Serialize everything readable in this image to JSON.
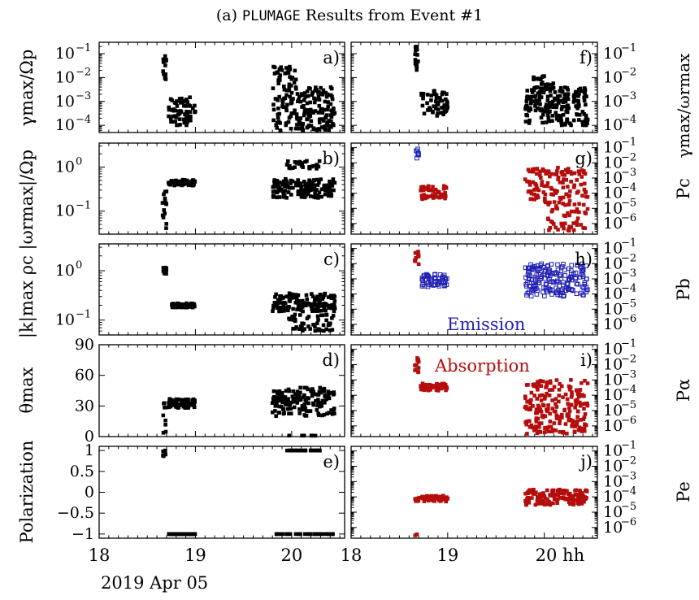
{
  "title": {
    "prefix": "(a)",
    "code": "PLUMAGE",
    "suffix": "Results from Event #1"
  },
  "colors": {
    "marker": "#000000",
    "absorption": "#b50c0c",
    "emission": "#1f1fb4"
  },
  "xaxis": {
    "ticks_left": [
      "18",
      "19",
      "20"
    ],
    "ticks_right": [
      "18",
      "19",
      "20 hh"
    ],
    "date": "2019 Apr 05",
    "xlim": [
      18,
      20.55
    ]
  },
  "legend": {
    "emission": "Emission",
    "absorption": "Absorption"
  },
  "left_ylabels": {
    "a": "γmax/Ωp",
    "bc": "|k|max ρc  |ωrmax|/Ωp",
    "d": "θmax",
    "e": "Polarization"
  },
  "right_ylabels": {
    "f": "γmax/ωrmax",
    "g": "Pc",
    "h": "Pb",
    "i": "Pα",
    "j": "Pe"
  },
  "chart_data": [
    {
      "panel": "a)",
      "type": "scatter",
      "scale": "log",
      "ylim": [
        5e-05,
        0.3
      ],
      "yticks": [
        {
          "v": 0.1,
          "t": "10",
          "e": "−1"
        },
        {
          "v": 0.01,
          "t": "10",
          "e": "−2"
        },
        {
          "v": 0.001,
          "t": "10",
          "e": "−3"
        },
        {
          "v": 0.0001,
          "t": "10",
          "e": "−4"
        }
      ],
      "clusters": [
        {
          "x": [
            18.66,
            18.7
          ],
          "y": [
            0.005,
            0.08
          ],
          "n": 14,
          "color": "marker"
        },
        {
          "x": [
            18.72,
            19.0
          ],
          "y": [
            0.0001,
            0.0015
          ],
          "n": 70,
          "color": "marker"
        },
        {
          "x": [
            19.8,
            20.05
          ],
          "y": [
            6e-05,
            0.03
          ],
          "n": 80,
          "color": "marker"
        },
        {
          "x": [
            20.05,
            20.45
          ],
          "y": [
            6e-05,
            0.004
          ],
          "n": 130,
          "color": "marker"
        }
      ]
    },
    {
      "panel": "b)",
      "type": "scatter",
      "scale": "log",
      "ylim": [
        0.03,
        3.5
      ],
      "yticks": [
        {
          "v": 1,
          "t": "10",
          "e": "0"
        },
        {
          "v": 0.1,
          "t": "10",
          "e": "−1"
        }
      ],
      "clusters": [
        {
          "x": [
            18.65,
            18.7
          ],
          "y": [
            0.04,
            0.3
          ],
          "n": 14,
          "color": "marker"
        },
        {
          "x": [
            18.72,
            19.0
          ],
          "y": [
            0.38,
            0.52
          ],
          "n": 60,
          "color": "marker"
        },
        {
          "x": [
            19.8,
            20.45
          ],
          "y": [
            0.2,
            0.55
          ],
          "n": 150,
          "color": "marker"
        },
        {
          "x": [
            19.95,
            20.3
          ],
          "y": [
            0.9,
            1.4
          ],
          "n": 30,
          "color": "marker"
        }
      ]
    },
    {
      "panel": "c)",
      "type": "scatter",
      "scale": "log",
      "ylim": [
        0.05,
        3.5
      ],
      "yticks": [
        {
          "v": 1,
          "t": "10",
          "e": "0"
        },
        {
          "v": 0.1,
          "t": "10",
          "e": "−1"
        }
      ],
      "clusters": [
        {
          "x": [
            18.66,
            18.7
          ],
          "y": [
            0.85,
            1.2
          ],
          "n": 14,
          "color": "marker"
        },
        {
          "x": [
            18.75,
            19.0
          ],
          "y": [
            0.18,
            0.22
          ],
          "n": 60,
          "color": "marker"
        },
        {
          "x": [
            19.8,
            20.45
          ],
          "y": [
            0.15,
            0.35
          ],
          "n": 150,
          "color": "marker"
        },
        {
          "x": [
            19.95,
            20.45
          ],
          "y": [
            0.06,
            0.13
          ],
          "n": 50,
          "color": "marker"
        }
      ]
    },
    {
      "panel": "d)",
      "type": "scatter",
      "scale": "linear",
      "ylim": [
        0,
        90
      ],
      "yticks": [
        {
          "v": 90,
          "t": "90"
        },
        {
          "v": 60,
          "t": "60"
        },
        {
          "v": 30,
          "t": "30"
        },
        {
          "v": 0,
          "t": "0"
        }
      ],
      "clusters": [
        {
          "x": [
            18.66,
            18.7
          ],
          "y": [
            0,
            34
          ],
          "n": 12,
          "color": "marker"
        },
        {
          "x": [
            18.72,
            19.0
          ],
          "y": [
            28,
            37
          ],
          "n": 70,
          "color": "marker"
        },
        {
          "x": [
            19.8,
            20.45
          ],
          "y": [
            20,
            48
          ],
          "n": 160,
          "color": "marker"
        },
        {
          "x": [
            19.95,
            20.3
          ],
          "y": [
            0,
            1
          ],
          "n": 20,
          "color": "marker"
        }
      ]
    },
    {
      "panel": "e)",
      "type": "scatter",
      "scale": "linear",
      "ylim": [
        -1.1,
        1.1
      ],
      "yticks": [
        {
          "v": 1,
          "t": "1"
        },
        {
          "v": 0.5,
          "t": "0.5"
        },
        {
          "v": 0,
          "t": "0"
        },
        {
          "v": -0.5,
          "t": "−0.5"
        },
        {
          "v": -1,
          "t": "−1"
        }
      ],
      "clusters": [
        {
          "x": [
            18.66,
            18.7
          ],
          "y": [
            0.85,
            1.0
          ],
          "n": 6,
          "color": "marker"
        },
        {
          "x": [
            18.72,
            19.0
          ],
          "y": [
            -1.0,
            -1.0
          ],
          "n": 40,
          "color": "marker"
        },
        {
          "x": [
            19.8,
            20.45
          ],
          "y": [
            -1.0,
            -1.0
          ],
          "n": 30,
          "color": "marker"
        },
        {
          "x": [
            19.95,
            20.3
          ],
          "y": [
            1.0,
            1.0
          ],
          "n": 30,
          "color": "marker"
        }
      ]
    },
    {
      "panel": "f)",
      "type": "scatter",
      "scale": "log",
      "ylim": [
        5e-05,
        0.3
      ],
      "yticks": [
        {
          "v": 0.1,
          "t": "10",
          "e": "−1"
        },
        {
          "v": 0.01,
          "t": "10",
          "e": "−2"
        },
        {
          "v": 0.001,
          "t": "10",
          "e": "−3"
        },
        {
          "v": 0.0001,
          "t": "10",
          "e": "−4"
        }
      ],
      "clusters": [
        {
          "x": [
            18.66,
            18.7
          ],
          "y": [
            0.015,
            0.2
          ],
          "n": 14,
          "color": "marker"
        },
        {
          "x": [
            18.72,
            19.0
          ],
          "y": [
            0.00025,
            0.003
          ],
          "n": 60,
          "color": "marker"
        },
        {
          "x": [
            19.8,
            20.45
          ],
          "y": [
            0.0001,
            0.004
          ],
          "n": 200,
          "color": "marker"
        },
        {
          "x": [
            19.85,
            20.1
          ],
          "y": [
            0.003,
            0.012
          ],
          "n": 25,
          "color": "marker"
        }
      ]
    },
    {
      "panel": "g)",
      "type": "scatter",
      "scale": "log",
      "ylim": [
        2e-07,
        0.2
      ],
      "yticks": [
        {
          "v": 0.1,
          "t": "10",
          "e": "−1"
        },
        {
          "v": 0.01,
          "t": "10",
          "e": "−2"
        },
        {
          "v": 0.001,
          "t": "10",
          "e": "−3"
        },
        {
          "v": 0.0001,
          "t": "10",
          "e": "−4"
        },
        {
          "v": 1e-05,
          "t": "10",
          "e": "−5"
        },
        {
          "v": 1e-06,
          "t": "10",
          "e": "−6"
        }
      ],
      "clusters": [
        {
          "x": [
            18.66,
            18.7
          ],
          "y": [
            0.02,
            0.09
          ],
          "n": 8,
          "color": "emission",
          "open": true
        },
        {
          "x": [
            18.72,
            19.0
          ],
          "y": [
            4e-05,
            0.0003
          ],
          "n": 50,
          "color": "absorption"
        },
        {
          "x": [
            19.8,
            20.45
          ],
          "y": [
            2e-05,
            0.005
          ],
          "n": 120,
          "color": "absorption"
        },
        {
          "x": [
            20.0,
            20.45
          ],
          "y": [
            3e-07,
            2e-05
          ],
          "n": 50,
          "color": "absorption"
        }
      ]
    },
    {
      "panel": "h)",
      "type": "scatter",
      "scale": "log",
      "ylim": [
        2e-07,
        0.2
      ],
      "yticks": [
        {
          "v": 0.1,
          "t": "10",
          "e": "−1"
        },
        {
          "v": 0.01,
          "t": "10",
          "e": "−2"
        },
        {
          "v": 0.001,
          "t": "10",
          "e": "−3"
        },
        {
          "v": 0.0001,
          "t": "10",
          "e": "−4"
        },
        {
          "v": 1e-05,
          "t": "10",
          "e": "−5"
        },
        {
          "v": 1e-06,
          "t": "10",
          "e": "−6"
        }
      ],
      "clusters": [
        {
          "x": [
            18.66,
            18.7
          ],
          "y": [
            0.008,
            0.1
          ],
          "n": 12,
          "color": "absorption"
        },
        {
          "x": [
            18.72,
            19.0
          ],
          "y": [
            0.0003,
            0.002
          ],
          "n": 50,
          "color": "emission",
          "open": true
        },
        {
          "x": [
            19.8,
            20.45
          ],
          "y": [
            7e-05,
            0.01
          ],
          "n": 180,
          "color": "emission",
          "open": true
        }
      ]
    },
    {
      "panel": "i)",
      "type": "scatter",
      "scale": "log",
      "ylim": [
        2e-07,
        0.2
      ],
      "yticks": [
        {
          "v": 0.1,
          "t": "10",
          "e": "−1"
        },
        {
          "v": 0.01,
          "t": "10",
          "e": "−2"
        },
        {
          "v": 0.001,
          "t": "10",
          "e": "−3"
        },
        {
          "v": 0.0001,
          "t": "10",
          "e": "−4"
        },
        {
          "v": 1e-05,
          "t": "10",
          "e": "−5"
        },
        {
          "v": 1e-06,
          "t": "10",
          "e": "−6"
        }
      ],
      "clusters": [
        {
          "x": [
            18.66,
            18.7
          ],
          "y": [
            0.003,
            0.03
          ],
          "n": 12,
          "color": "absorption"
        },
        {
          "x": [
            18.72,
            19.0
          ],
          "y": [
            0.0002,
            0.0006
          ],
          "n": 60,
          "color": "absorption"
        },
        {
          "x": [
            19.8,
            20.45
          ],
          "y": [
            3e-07,
            0.001
          ],
          "n": 200,
          "color": "absorption"
        }
      ]
    },
    {
      "panel": "j)",
      "type": "scatter",
      "scale": "log",
      "ylim": [
        2e-07,
        0.2
      ],
      "yticks": [
        {
          "v": 0.1,
          "t": "10",
          "e": "−1"
        },
        {
          "v": 0.01,
          "t": "10",
          "e": "−2"
        },
        {
          "v": 0.001,
          "t": "10",
          "e": "−3"
        },
        {
          "v": 0.0001,
          "t": "10",
          "e": "−4"
        },
        {
          "v": 1e-05,
          "t": "10",
          "e": "−5"
        },
        {
          "v": 1e-06,
          "t": "10",
          "e": "−6"
        }
      ],
      "clusters": [
        {
          "x": [
            18.66,
            18.7
          ],
          "y": [
            3e-07,
            4e-07
          ],
          "n": 2,
          "color": "absorption"
        },
        {
          "x": [
            18.66,
            19.0
          ],
          "y": [
            5e-05,
            0.00012
          ],
          "n": 60,
          "color": "absorption"
        },
        {
          "x": [
            19.8,
            20.45
          ],
          "y": [
            3e-05,
            0.0003
          ],
          "n": 150,
          "color": "absorption"
        }
      ]
    }
  ]
}
